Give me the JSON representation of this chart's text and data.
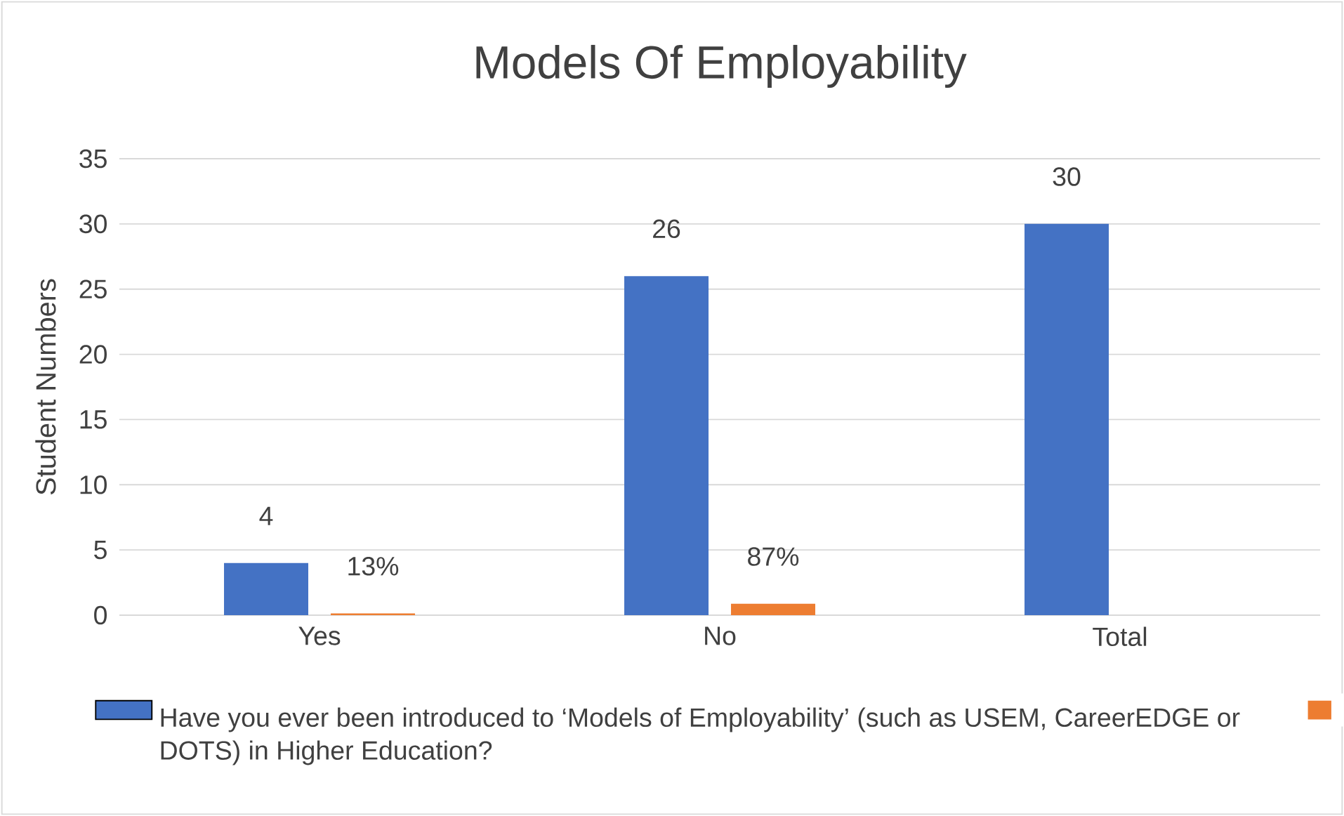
{
  "chart_data": {
    "type": "bar",
    "title": "Models Of Employability",
    "ylabel": "Student Numbers",
    "categories": [
      "Yes",
      "No",
      "Total"
    ],
    "series": [
      {
        "name": "Have you ever been introduced to ‘Models of Employability’ (such as USEM, CareerEDGE or DOTS) in Higher Education?",
        "color": "#4472c4",
        "values": [
          4,
          26,
          30
        ],
        "value_labels": [
          "4",
          "26",
          "30"
        ]
      },
      {
        "color": "#ed7d31",
        "values": [
          0.13,
          0.87,
          null
        ],
        "value_labels": [
          "13%",
          "87%",
          null
        ]
      }
    ],
    "ylim": [
      0,
      35
    ],
    "yticks": [
      0,
      5,
      10,
      15,
      20,
      25,
      30,
      35
    ],
    "grid": "y",
    "legend": "bottom"
  }
}
